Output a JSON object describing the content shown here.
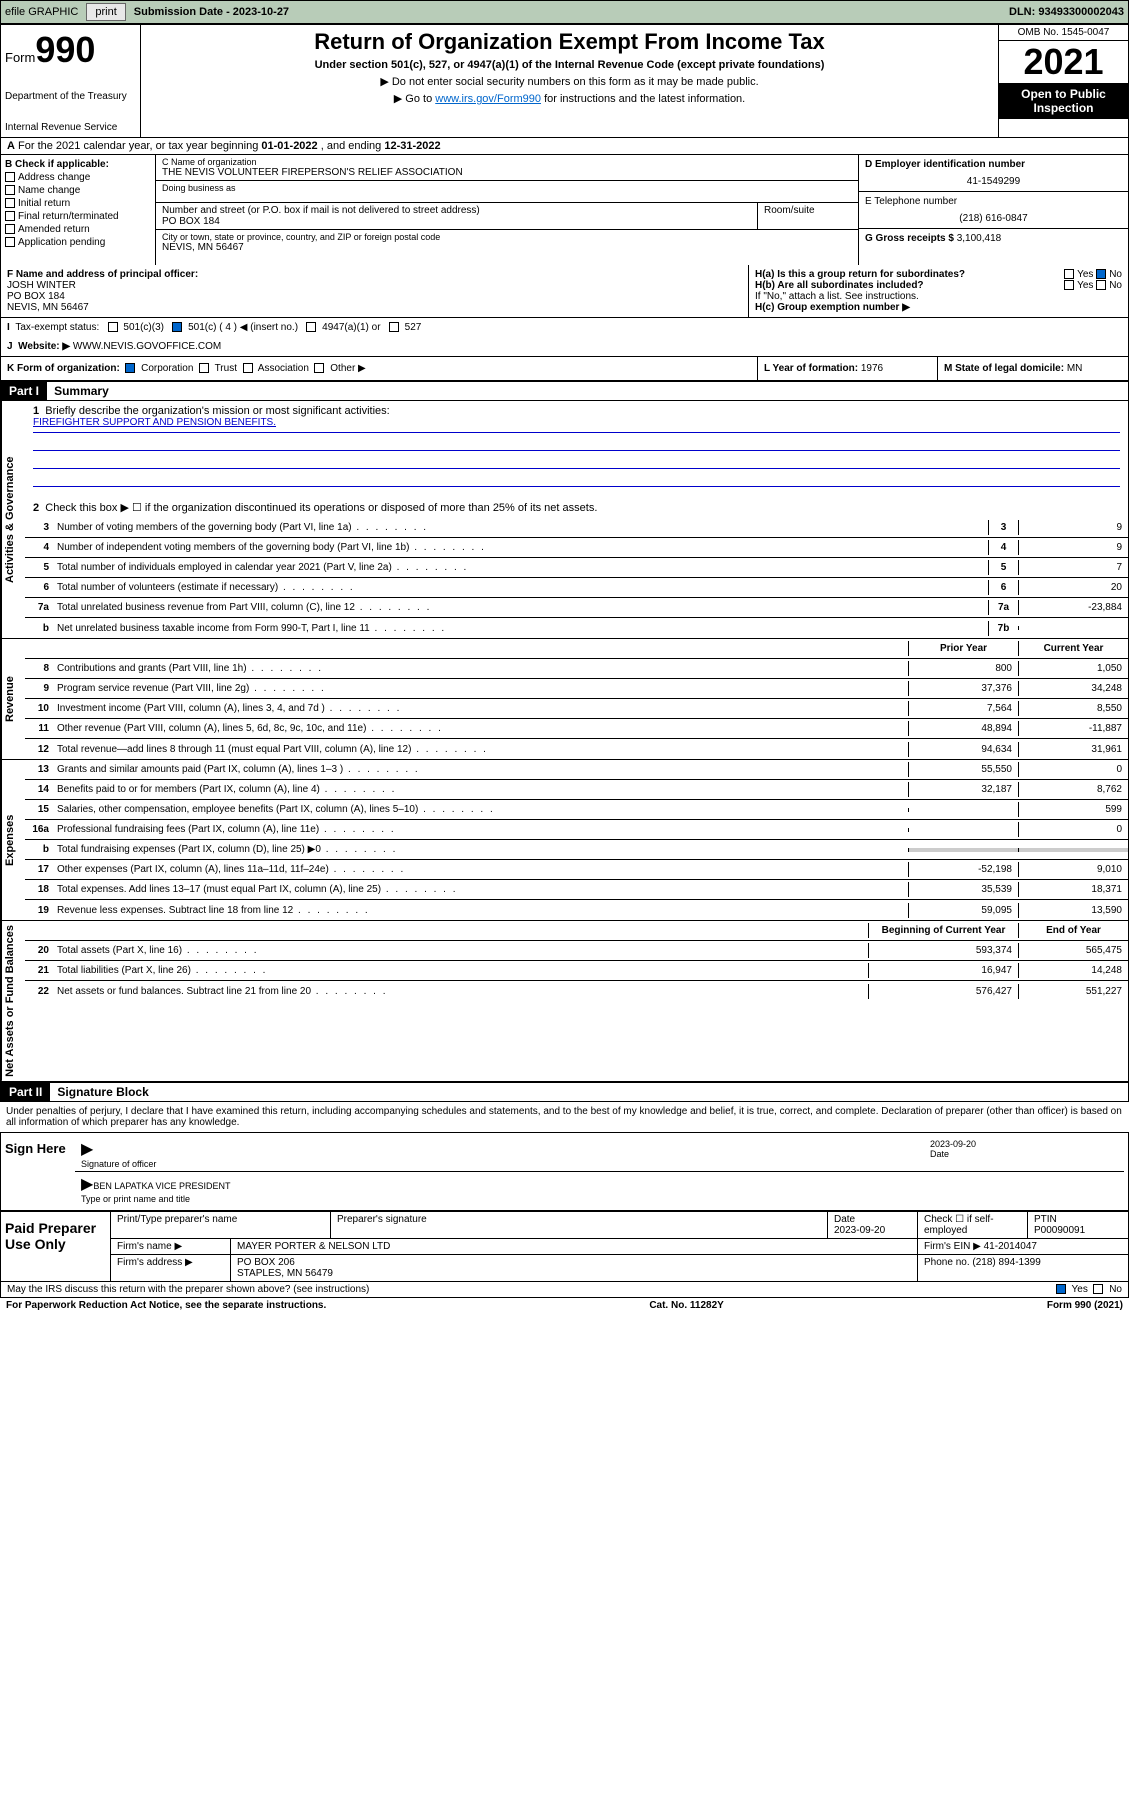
{
  "topbar": {
    "efile": "efile GRAPHIC",
    "print": "print",
    "sub_label": "Submission Date - 2023-10-27",
    "dln_label": "DLN: 93493300002043"
  },
  "header": {
    "form_word": "Form",
    "form_num": "990",
    "dept": "Department of the Treasury",
    "irs": "Internal Revenue Service",
    "title": "Return of Organization Exempt From Income Tax",
    "sub1": "Under section 501(c), 527, or 4947(a)(1) of the Internal Revenue Code (except private foundations)",
    "sub2": "▶ Do not enter social security numbers on this form as it may be made public.",
    "sub3_pre": "▶ Go to ",
    "sub3_link": "www.irs.gov/Form990",
    "sub3_post": " for instructions and the latest information.",
    "omb": "OMB No. 1545-0047",
    "year": "2021",
    "open_pub": "Open to Public Inspection"
  },
  "rowA": {
    "prefix": "A",
    "text": "For the 2021 calendar year, or tax year beginning ",
    "begin": "01-01-2022",
    "mid": " , and ending ",
    "end": "12-31-2022"
  },
  "colB": {
    "hdr": "B Check if applicable:",
    "opts": [
      "Address change",
      "Name change",
      "Initial return",
      "Final return/terminated",
      "Amended return",
      "Application pending"
    ]
  },
  "colC": {
    "name_lbl": "C Name of organization",
    "name": "THE NEVIS VOLUNTEER FIREPERSON'S RELIEF ASSOCIATION",
    "dba_lbl": "Doing business as",
    "dba": "",
    "addr_lbl": "Number and street (or P.O. box if mail is not delivered to street address)",
    "addr": "PO BOX 184",
    "room_lbl": "Room/suite",
    "room": "",
    "city_lbl": "City or town, state or province, country, and ZIP or foreign postal code",
    "city": "NEVIS, MN  56467"
  },
  "colD": {
    "ein_lbl": "D Employer identification number",
    "ein": "41-1549299",
    "tel_lbl": "E Telephone number",
    "tel": "(218) 616-0847",
    "gross_lbl": "G Gross receipts $ ",
    "gross": "3,100,418"
  },
  "rowF": {
    "lbl": "F Name and address of principal officer:",
    "name": "JOSH WINTER",
    "addr1": "PO BOX 184",
    "addr2": "NEVIS, MN  56467"
  },
  "rowH": {
    "ha": "H(a)  Is this a group return for subordinates?",
    "hb": "H(b)  Are all subordinates included?",
    "hb_note": "If \"No,\" attach a list. See instructions.",
    "hc": "H(c)  Group exemption number ▶",
    "yes": "Yes",
    "no": "No"
  },
  "rowI": {
    "lbl": "Tax-exempt status:",
    "o1": "501(c)(3)",
    "o2": "501(c) ( 4 ) ◀ (insert no.)",
    "o3": "4947(a)(1) or",
    "o4": "527"
  },
  "rowJ": {
    "lbl": "Website: ▶",
    "val": "WWW.NEVIS.GOVOFFICE.COM"
  },
  "rowK": {
    "lbl": "K Form of organization:",
    "o1": "Corporation",
    "o2": "Trust",
    "o3": "Association",
    "o4": "Other ▶"
  },
  "rowL": {
    "lbl": "L Year of formation: ",
    "val": "1976"
  },
  "rowM": {
    "lbl": "M State of legal domicile: ",
    "val": "MN"
  },
  "part1": {
    "hdr": "Part I",
    "title": "Summary",
    "q1": "Briefly describe the organization's mission or most significant activities:",
    "mission": "FIREFIGHTER SUPPORT AND PENSION BENEFITS.",
    "q2": "Check this box ▶ ☐  if the organization discontinued its operations or disposed of more than 25% of its net assets.",
    "sections": {
      "gov": "Activities & Governance",
      "rev": "Revenue",
      "exp": "Expenses",
      "net": "Net Assets or Fund Balances"
    },
    "rows_gov": [
      {
        "n": "3",
        "t": "Number of voting members of the governing body (Part VI, line 1a)",
        "b": "3",
        "v": "9"
      },
      {
        "n": "4",
        "t": "Number of independent voting members of the governing body (Part VI, line 1b)",
        "b": "4",
        "v": "9"
      },
      {
        "n": "5",
        "t": "Total number of individuals employed in calendar year 2021 (Part V, line 2a)",
        "b": "5",
        "v": "7"
      },
      {
        "n": "6",
        "t": "Total number of volunteers (estimate if necessary)",
        "b": "6",
        "v": "20"
      },
      {
        "n": "7a",
        "t": "Total unrelated business revenue from Part VIII, column (C), line 12",
        "b": "7a",
        "v": "-23,884"
      },
      {
        "n": "b",
        "t": "Net unrelated business taxable income from Form 990-T, Part I, line 11",
        "b": "7b",
        "v": ""
      }
    ],
    "col_hdr1": "Prior Year",
    "col_hdr2": "Current Year",
    "rows_rev": [
      {
        "n": "8",
        "t": "Contributions and grants (Part VIII, line 1h)",
        "v1": "800",
        "v2": "1,050"
      },
      {
        "n": "9",
        "t": "Program service revenue (Part VIII, line 2g)",
        "v1": "37,376",
        "v2": "34,248"
      },
      {
        "n": "10",
        "t": "Investment income (Part VIII, column (A), lines 3, 4, and 7d )",
        "v1": "7,564",
        "v2": "8,550"
      },
      {
        "n": "11",
        "t": "Other revenue (Part VIII, column (A), lines 5, 6d, 8c, 9c, 10c, and 11e)",
        "v1": "48,894",
        "v2": "-11,887"
      },
      {
        "n": "12",
        "t": "Total revenue—add lines 8 through 11 (must equal Part VIII, column (A), line 12)",
        "v1": "94,634",
        "v2": "31,961"
      }
    ],
    "rows_exp": [
      {
        "n": "13",
        "t": "Grants and similar amounts paid (Part IX, column (A), lines 1–3 )",
        "v1": "55,550",
        "v2": "0"
      },
      {
        "n": "14",
        "t": "Benefits paid to or for members (Part IX, column (A), line 4)",
        "v1": "32,187",
        "v2": "8,762"
      },
      {
        "n": "15",
        "t": "Salaries, other compensation, employee benefits (Part IX, column (A), lines 5–10)",
        "v1": "",
        "v2": "599"
      },
      {
        "n": "16a",
        "t": "Professional fundraising fees (Part IX, column (A), line 11e)",
        "v1": "",
        "v2": "0"
      },
      {
        "n": "b",
        "t": "Total fundraising expenses (Part IX, column (D), line 25) ▶0",
        "v1": "",
        "v2": "",
        "shaded": true
      },
      {
        "n": "17",
        "t": "Other expenses (Part IX, column (A), lines 11a–11d, 11f–24e)",
        "v1": "-52,198",
        "v2": "9,010"
      },
      {
        "n": "18",
        "t": "Total expenses. Add lines 13–17 (must equal Part IX, column (A), line 25)",
        "v1": "35,539",
        "v2": "18,371"
      },
      {
        "n": "19",
        "t": "Revenue less expenses. Subtract line 18 from line 12",
        "v1": "59,095",
        "v2": "13,590"
      }
    ],
    "col_hdr3": "Beginning of Current Year",
    "col_hdr4": "End of Year",
    "rows_net": [
      {
        "n": "20",
        "t": "Total assets (Part X, line 16)",
        "v1": "593,374",
        "v2": "565,475"
      },
      {
        "n": "21",
        "t": "Total liabilities (Part X, line 26)",
        "v1": "16,947",
        "v2": "14,248"
      },
      {
        "n": "22",
        "t": "Net assets or fund balances. Subtract line 21 from line 20",
        "v1": "576,427",
        "v2": "551,227"
      }
    ]
  },
  "part2": {
    "hdr": "Part II",
    "title": "Signature Block",
    "decl": "Under penalties of perjury, I declare that I have examined this return, including accompanying schedules and statements, and to the best of my knowledge and belief, it is true, correct, and complete. Declaration of preparer (other than officer) is based on all information of which preparer has any knowledge.",
    "sign_here": "Sign Here",
    "sig_officer": "Signature of officer",
    "sig_date_lbl": "Date",
    "sig_date": "2023-09-20",
    "name_title_lbl": "Type or print name and title",
    "name_title": "BEN LAPATKA  VICE PRESIDENT",
    "paid_prep": "Paid Preparer Use Only",
    "prep_name_lbl": "Print/Type preparer's name",
    "prep_name": "",
    "prep_sig_lbl": "Preparer's signature",
    "prep_date_lbl": "Date",
    "prep_date": "2023-09-20",
    "prep_check_lbl": "Check ☐ if self-employed",
    "ptin_lbl": "PTIN",
    "ptin": "P00090091",
    "firm_name_lbl": "Firm's name    ▶",
    "firm_name": "MAYER PORTER & NELSON LTD",
    "firm_ein_lbl": "Firm's EIN ▶",
    "firm_ein": "41-2014047",
    "firm_addr_lbl": "Firm's address ▶",
    "firm_addr1": "PO BOX 206",
    "firm_addr2": "STAPLES, MN  56479",
    "phone_lbl": "Phone no.",
    "phone": "(218) 894-1399",
    "discuss": "May the IRS discuss this return with the preparer shown above? (see instructions)",
    "discuss_yes": "Yes",
    "discuss_no": "No"
  },
  "footer": {
    "pra": "For Paperwork Reduction Act Notice, see the separate instructions.",
    "cat": "Cat. No. 11282Y",
    "form": "Form 990 (2021)"
  }
}
